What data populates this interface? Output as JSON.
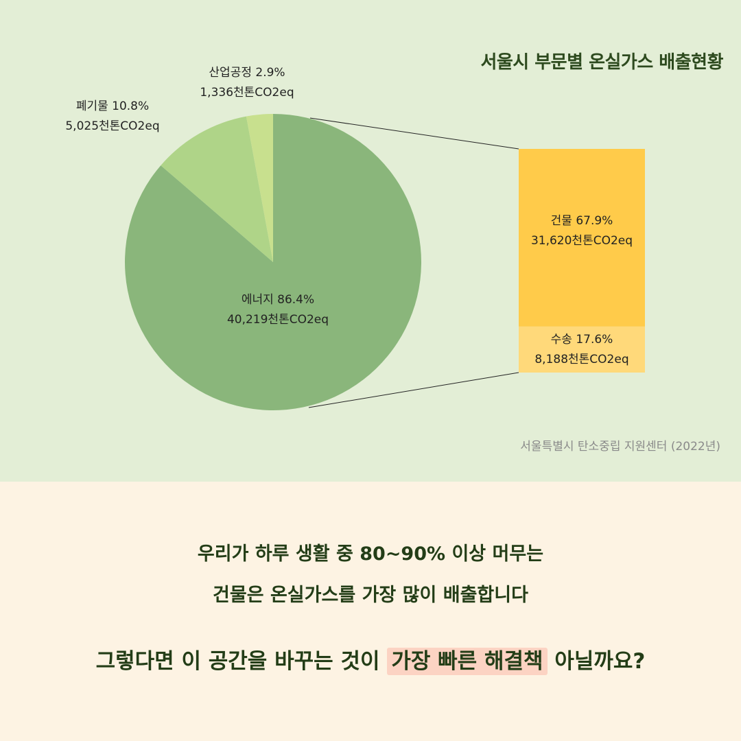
{
  "chart_data": [
    {
      "type": "pie",
      "title": "서울시 부문별 온실가스 배출현황",
      "start": "top, clockwise",
      "slices": [
        {
          "label": "에너지",
          "percent": 86.4,
          "value": 40219,
          "unit": "천톤CO2eq",
          "color": "#8ab67b"
        },
        {
          "label": "폐기물",
          "percent": 10.8,
          "value": 5025,
          "unit": "천톤CO2eq",
          "color": "#afd488"
        },
        {
          "label": "산업공정",
          "percent": 2.9,
          "value": 1336,
          "unit": "천톤CO2eq",
          "color": "#c8e08e"
        }
      ],
      "labels": {
        "energy": {
          "line1": "에너지 86.4%",
          "line2": "40,219천톤CO2eq"
        },
        "waste": {
          "line1": "폐기물 10.8%",
          "line2": "5,025천톤CO2eq"
        },
        "industry": {
          "line1": "산업공정 2.9%",
          "line2": "1,336천톤CO2eq"
        }
      }
    },
    {
      "type": "bar",
      "stacked": true,
      "breakdown_of": "에너지",
      "segments": [
        {
          "label": "건물",
          "percent": 67.9,
          "value": 31620,
          "unit": "천톤CO2eq",
          "color": "#ffcb4a"
        },
        {
          "label": "수송",
          "percent": 17.6,
          "value": 8188,
          "unit": "천톤CO2eq",
          "color": "#ffd97a"
        }
      ],
      "labels": {
        "building": {
          "line1": "건물 67.9%",
          "line2": "31,620천톤CO2eq"
        },
        "transport": {
          "line1": "수송 17.6%",
          "line2": "8,188천톤CO2eq"
        }
      }
    }
  ],
  "title": "서울시 부문별 온실가스 배출현황",
  "source": "서울특별시 탄소중립 지원센터 (2022년)",
  "message": {
    "line1": "우리가 하루 생활 중 80~90% 이상 머무는",
    "line2": "건물은 온실가스를 가장 많이 배출합니다",
    "line3_pre": "그렇다면 이 공간을 바꾸는 것이 ",
    "line3_highlight": "가장 빠른 해결책",
    "line3_post": " 아닐까요?"
  },
  "colors": {
    "top_bg": "#e3eed6",
    "bottom_bg": "#fdf3e3",
    "text_dark": "#233d17",
    "highlight": "#fcd3c3"
  }
}
